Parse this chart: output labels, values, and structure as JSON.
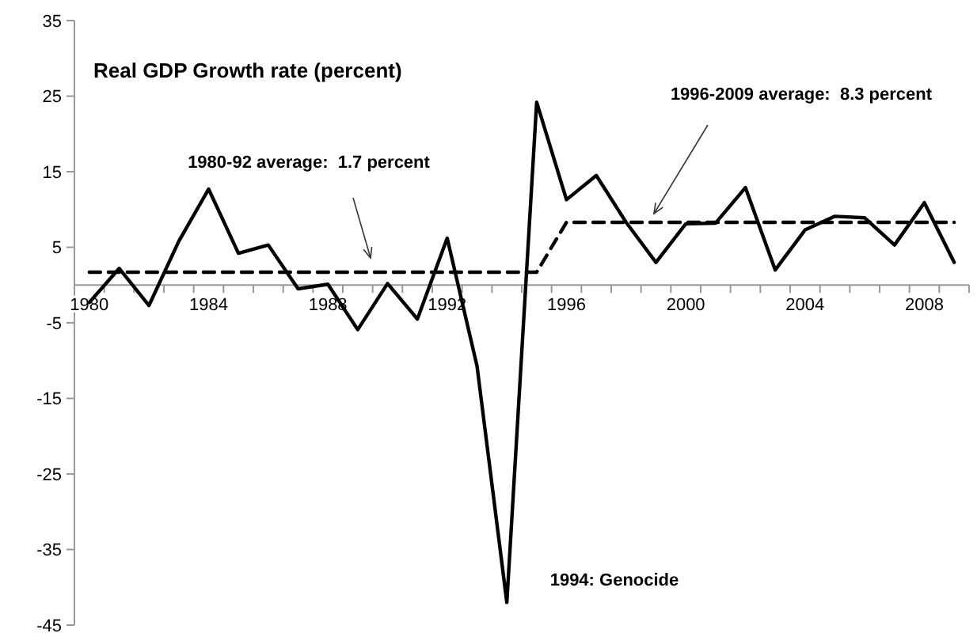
{
  "chart_data": {
    "type": "line",
    "title": "Real GDP Growth rate (percent)",
    "x": [
      1980,
      1981,
      1982,
      1983,
      1984,
      1985,
      1986,
      1987,
      1988,
      1989,
      1990,
      1991,
      1992,
      1993,
      1994,
      1995,
      1996,
      1997,
      1998,
      1999,
      2000,
      2001,
      2002,
      2003,
      2004,
      2005,
      2006,
      2007,
      2008,
      2009
    ],
    "series": [
      {
        "color": "#000000",
        "line_style": "solid",
        "values": [
          -2.3,
          2.2,
          -2.7,
          5.8,
          12.7,
          4.2,
          5.3,
          -0.5,
          0.1,
          -5.9,
          0.2,
          -4.5,
          6.2,
          -10.7,
          -42,
          24.2,
          11.3,
          14.5,
          8.3,
          3.0,
          8.1,
          8.2,
          12.9,
          2.0,
          7.3,
          9.1,
          8.9,
          5.3,
          10.9,
          3.0
        ]
      },
      {
        "color": "#000000",
        "line_style": "dashed",
        "values": [
          1.7,
          1.7,
          1.7,
          1.7,
          1.7,
          1.7,
          1.7,
          1.7,
          1.7,
          1.7,
          1.7,
          1.7,
          1.7,
          1.7,
          1.7,
          1.7,
          8.3,
          8.3,
          8.3,
          8.3,
          8.3,
          8.3,
          8.3,
          8.3,
          8.3,
          8.3,
          8.3,
          8.3,
          8.3,
          8.3
        ]
      }
    ],
    "xlim": [
      1979.5,
      2009.5
    ],
    "xticks": [
      1980,
      1984,
      1988,
      1992,
      1996,
      2000,
      2004,
      2008
    ],
    "ylim": [
      -45,
      35
    ],
    "yticks": [
      -45,
      -35,
      -25,
      -15,
      -5,
      5,
      15,
      25,
      35
    ],
    "grid": false,
    "marker": "none",
    "annotations": [
      "1980-92 average:  1.7 percent",
      "1996-2009 average:  8.3 percent",
      "1994: Genocide"
    ]
  }
}
